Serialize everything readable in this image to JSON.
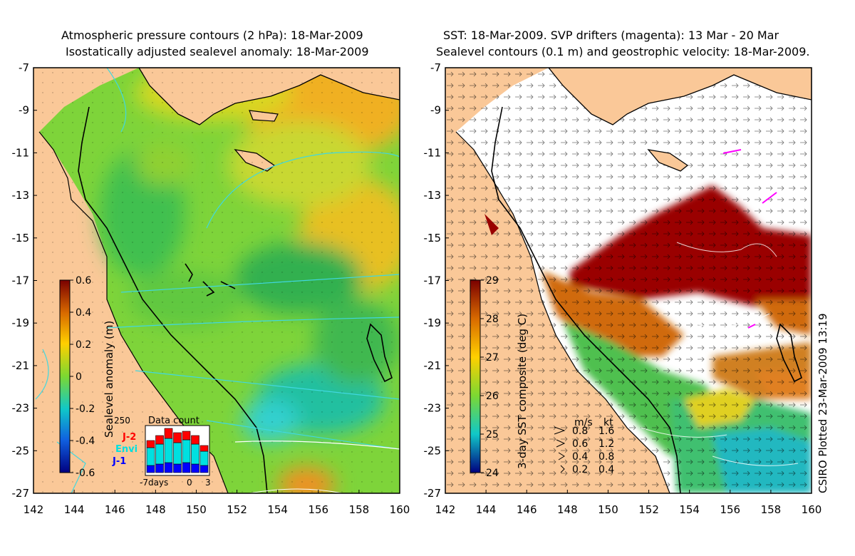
{
  "left_panel": {
    "title_line1": "Atmospheric pressure contours (2 hPa): 18-Mar-2009",
    "title_line2": "Isostatically adjusted sealevel anomaly: 18-Mar-2009",
    "y_ticks": [
      "-7",
      "-9",
      "-11",
      "-13",
      "-15",
      "-17",
      "-19",
      "-21",
      "-23",
      "-25",
      "-27"
    ],
    "x_ticks": [
      "142",
      "144",
      "146",
      "148",
      "150",
      "152",
      "154",
      "156",
      "158",
      "160"
    ],
    "colorbar": {
      "label": "Sealevel anomaly (m)",
      "ticks": [
        "0.6",
        "0.4",
        "0.2",
        "0",
        "-0.2",
        "-0.4",
        "-0.6"
      ]
    },
    "data_count": {
      "title": "Data count",
      "y_max_label": "250",
      "legend": [
        "J-2",
        "Envi",
        "J-1"
      ],
      "legend_colors": [
        "#ff0000",
        "#00e0e0",
        "#0000ff"
      ],
      "x_labels": [
        "-7days",
        "0",
        "3"
      ]
    }
  },
  "right_panel": {
    "title_line1": "SST: 18-Mar-2009. SVP drifters (magenta): 13 Mar - 20 Mar",
    "title_line2": "Sealevel contours (0.1 m) and geostrophic velocity: 18-Mar-2009.",
    "y_ticks": [
      "-7",
      "-9",
      "-11",
      "-13",
      "-15",
      "-17",
      "-19",
      "-21",
      "-23",
      "-25",
      "-27"
    ],
    "x_ticks": [
      "142",
      "144",
      "146",
      "148",
      "150",
      "152",
      "154",
      "156",
      "158",
      "160"
    ],
    "colorbar": {
      "label": "3-day SST composite (deg C)",
      "ticks": [
        "29",
        "28",
        "27",
        "26",
        "25",
        "24"
      ]
    },
    "velocity_legend": {
      "header_ms": "m/s",
      "header_kt": "kt",
      "rows": [
        {
          "ms": "0.8",
          "kt": "1.6"
        },
        {
          "ms": "0.6",
          "kt": "1.2"
        },
        {
          "ms": "0.4",
          "kt": "0.8"
        },
        {
          "ms": "0.2",
          "kt": "0.4"
        }
      ]
    }
  },
  "footer_label": "CSIRO Plotted 23-Mar-2009 13:19",
  "colors": {
    "land": "#fac898",
    "cloud": "#ffffff",
    "coast": "#000000"
  }
}
